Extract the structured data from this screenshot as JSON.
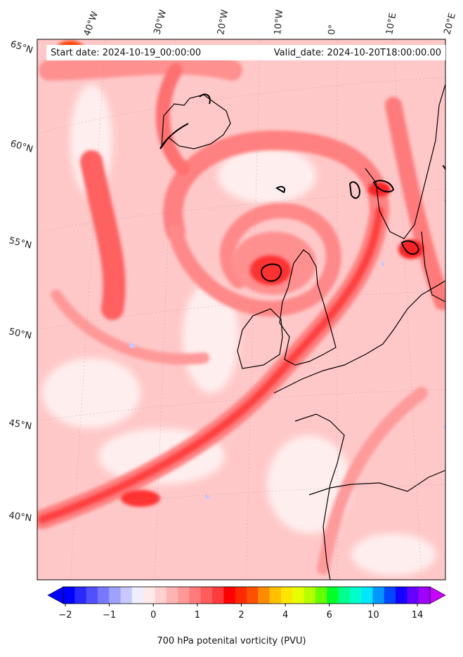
{
  "map": {
    "start_date": "Start date: 2024-10-19_00:00:00",
    "valid_date": "Valid_date: 2024-10-20T18:00:00.00",
    "lon_labels": [
      "40°W",
      "30°W",
      "20°W",
      "10°W",
      "0°",
      "10°E",
      "20°E"
    ],
    "lat_labels": [
      "65°N",
      "60°N",
      "55°N",
      "50°N",
      "45°N",
      "40°N"
    ]
  },
  "colorbar": {
    "label": "700 hPa potenital vorticity (PVU)",
    "ticks": [
      "−2",
      "−1",
      "0",
      "1",
      "2",
      "4",
      "6",
      "10",
      "14"
    ],
    "colors": [
      "#0000ff",
      "#2828ff",
      "#5050ff",
      "#7878ff",
      "#a0a0ff",
      "#c8c8ff",
      "#eeeeff",
      "#ffeaea",
      "#ffd0d0",
      "#ffb4b4",
      "#ff9999",
      "#ff7a7a",
      "#ff5c5c",
      "#ff3b3b",
      "#ff0000",
      "#ff2800",
      "#ff5000",
      "#ff8c00",
      "#ffc000",
      "#ffe600",
      "#e6ff00",
      "#b4ff00",
      "#64ff00",
      "#00ff28",
      "#00ff8c",
      "#00ffc8",
      "#00e6ff",
      "#0096ff",
      "#0046ff",
      "#1400ff",
      "#6400ff",
      "#a000ff"
    ]
  }
}
